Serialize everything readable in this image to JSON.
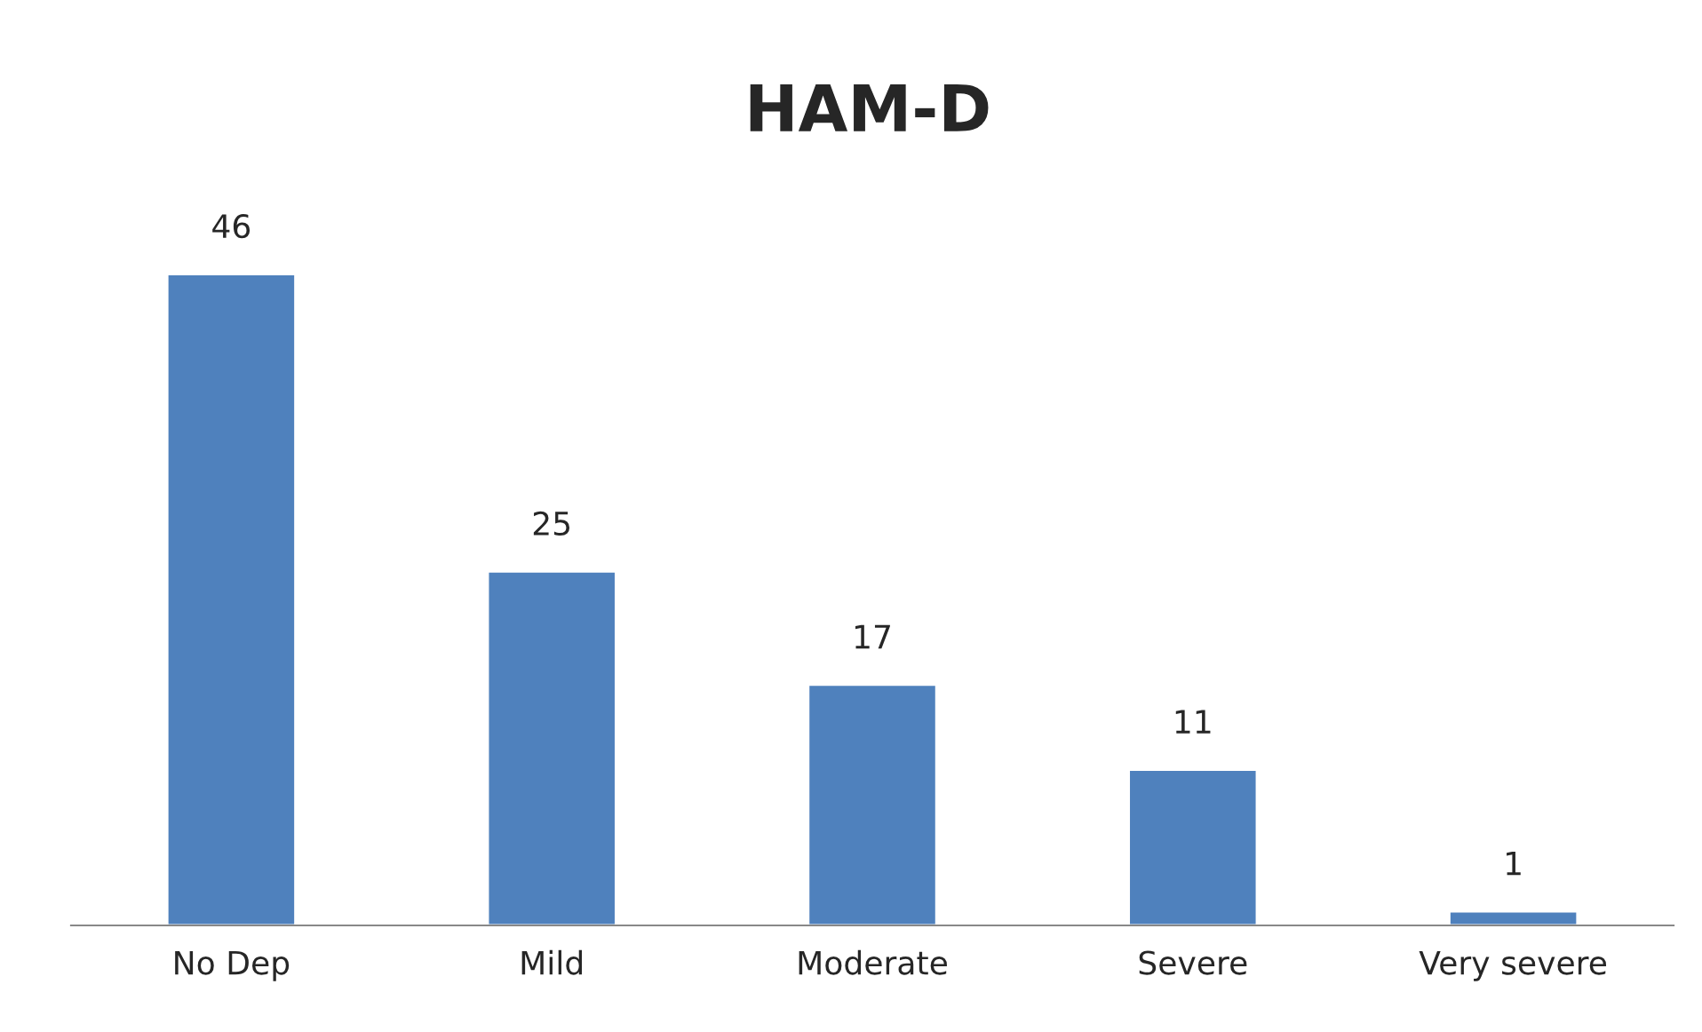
{
  "chart_data": {
    "type": "bar",
    "title": "HAM-D",
    "categories": [
      "No Dep",
      "Mild",
      "Moderate",
      "Severe",
      "Very severe"
    ],
    "values": [
      46,
      25,
      17,
      11,
      1
    ],
    "color": "#4f81bd",
    "data_labels": true,
    "grid": false,
    "legend": false
  }
}
